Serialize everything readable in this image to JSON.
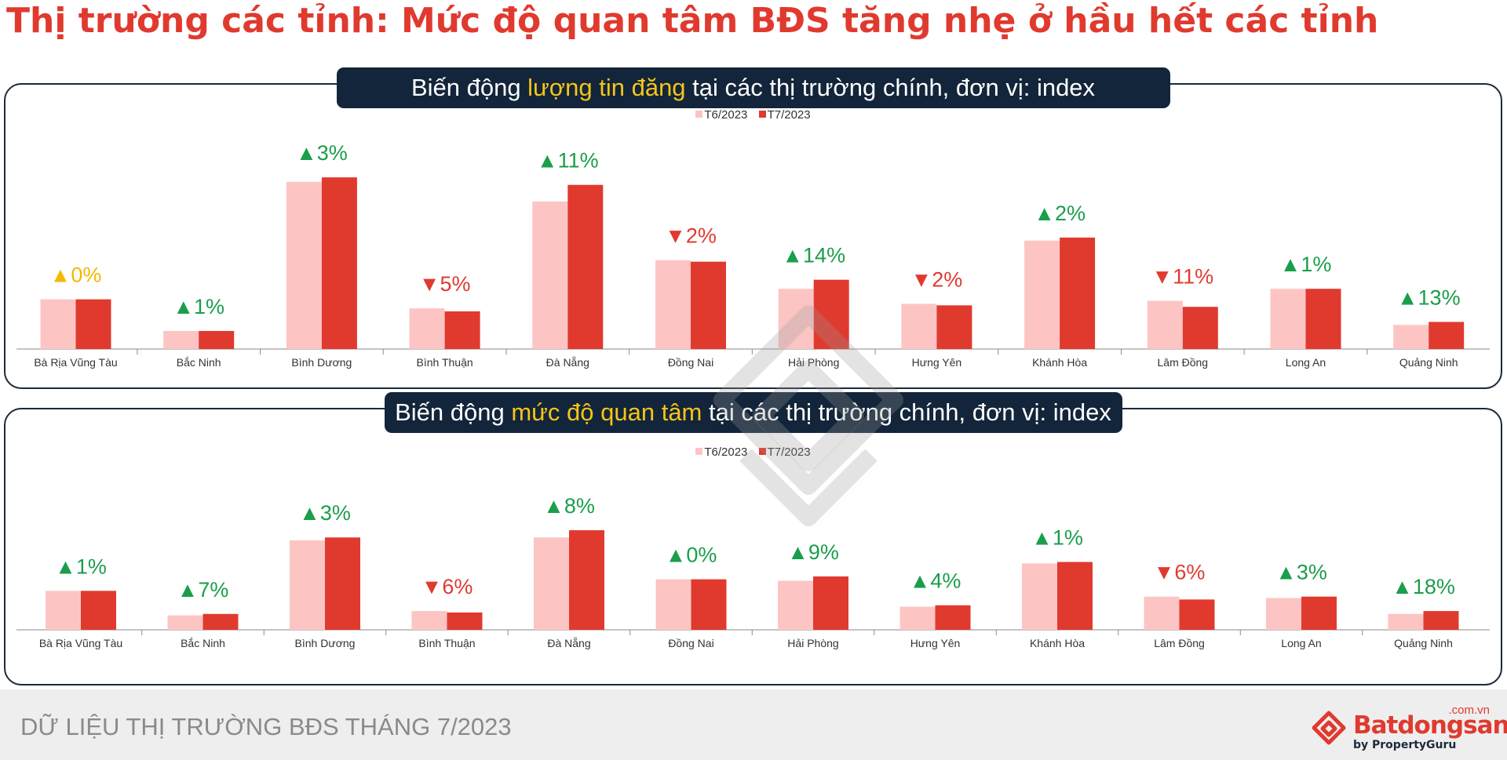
{
  "page": {
    "title": "Thị trường các tỉnh: Mức độ quan tâm BĐS tăng nhẹ ở hầu hết các tỉnh"
  },
  "colors": {
    "title": "#e03a2f",
    "prev": "#fcc5c4",
    "curr": "#e03a2f",
    "up": "#1a9e4b",
    "down": "#e03a2f",
    "flat": "#f5b800",
    "header_bg": "#13253a",
    "highlight": "#f5c518"
  },
  "footer": {
    "text": "DỮ LIỆU THỊ TRƯỜNG BĐS THÁNG 7/2023",
    "logo_domain": ".com.vn",
    "logo_brand": "Batdongsan",
    "logo_sub": "by PropertyGuru"
  },
  "chart_data": [
    {
      "type": "bar",
      "title_pre": "Biến động ",
      "title_highlight": "lượng tin đăng",
      "title_post": " tại các thị trường chính, đơn vị: index",
      "categories": [
        "Bà Rịa Vũng Tàu",
        "Bắc Ninh",
        "Bình Dương",
        "Bình Thuận",
        "Đà Nẵng",
        "Đồng Nai",
        "Hải Phòng",
        "Hưng Yên",
        "Khánh Hòa",
        "Lâm Đồng",
        "Long An",
        "Quảng Ninh"
      ],
      "series": [
        {
          "name": "T6/2023",
          "values": [
            33,
            12,
            111,
            27,
            98,
            59,
            40,
            30,
            72,
            32,
            40,
            16
          ]
        },
        {
          "name": "T7/2023",
          "values": [
            33,
            12,
            114,
            25,
            109,
            58,
            46,
            29,
            74,
            28,
            40,
            18
          ]
        }
      ],
      "changes": [
        {
          "dir": "flat",
          "text": "0%"
        },
        {
          "dir": "up",
          "text": "1%"
        },
        {
          "dir": "up",
          "text": "3%"
        },
        {
          "dir": "down",
          "text": "5%"
        },
        {
          "dir": "up",
          "text": "11%"
        },
        {
          "dir": "down",
          "text": "2%"
        },
        {
          "dir": "up",
          "text": "14%"
        },
        {
          "dir": "down",
          "text": "2%"
        },
        {
          "dir": "up",
          "text": "2%"
        },
        {
          "dir": "down",
          "text": "11%"
        },
        {
          "dir": "up",
          "text": "1%"
        },
        {
          "dir": "up",
          "text": "13%"
        }
      ],
      "ylim": [
        0,
        120
      ]
    },
    {
      "type": "bar",
      "title_pre": "Biến động ",
      "title_highlight": "mức độ quan tâm",
      "title_post": " tại các thị trường chính, đơn vị: index",
      "categories": [
        "Bà Rịa Vũng Tàu",
        "Bắc Ninh",
        "Bình Dương",
        "Bình Thuận",
        "Đà Nẵng",
        "Đồng Nai",
        "Hải Phòng",
        "Hưng Yên",
        "Khánh Hòa",
        "Lâm Đồng",
        "Long An",
        "Quảng Ninh"
      ],
      "series": [
        {
          "name": "T6/2023",
          "values": [
            27,
            10,
            62,
            13,
            64,
            35,
            34,
            16,
            46,
            23,
            22,
            11
          ]
        },
        {
          "name": "T7/2023",
          "values": [
            27,
            11,
            64,
            12,
            69,
            35,
            37,
            17,
            47,
            21,
            23,
            13
          ]
        }
      ],
      "changes": [
        {
          "dir": "up",
          "text": "1%"
        },
        {
          "dir": "up",
          "text": "7%"
        },
        {
          "dir": "up",
          "text": "3%"
        },
        {
          "dir": "down",
          "text": "6%"
        },
        {
          "dir": "up",
          "text": "8%"
        },
        {
          "dir": "up",
          "text": "0%"
        },
        {
          "dir": "up",
          "text": "9%"
        },
        {
          "dir": "up",
          "text": "4%"
        },
        {
          "dir": "up",
          "text": "1%"
        },
        {
          "dir": "down",
          "text": "6%"
        },
        {
          "dir": "up",
          "text": "3%"
        },
        {
          "dir": "up",
          "text": "18%"
        }
      ],
      "ylim": [
        0,
        80
      ]
    }
  ]
}
